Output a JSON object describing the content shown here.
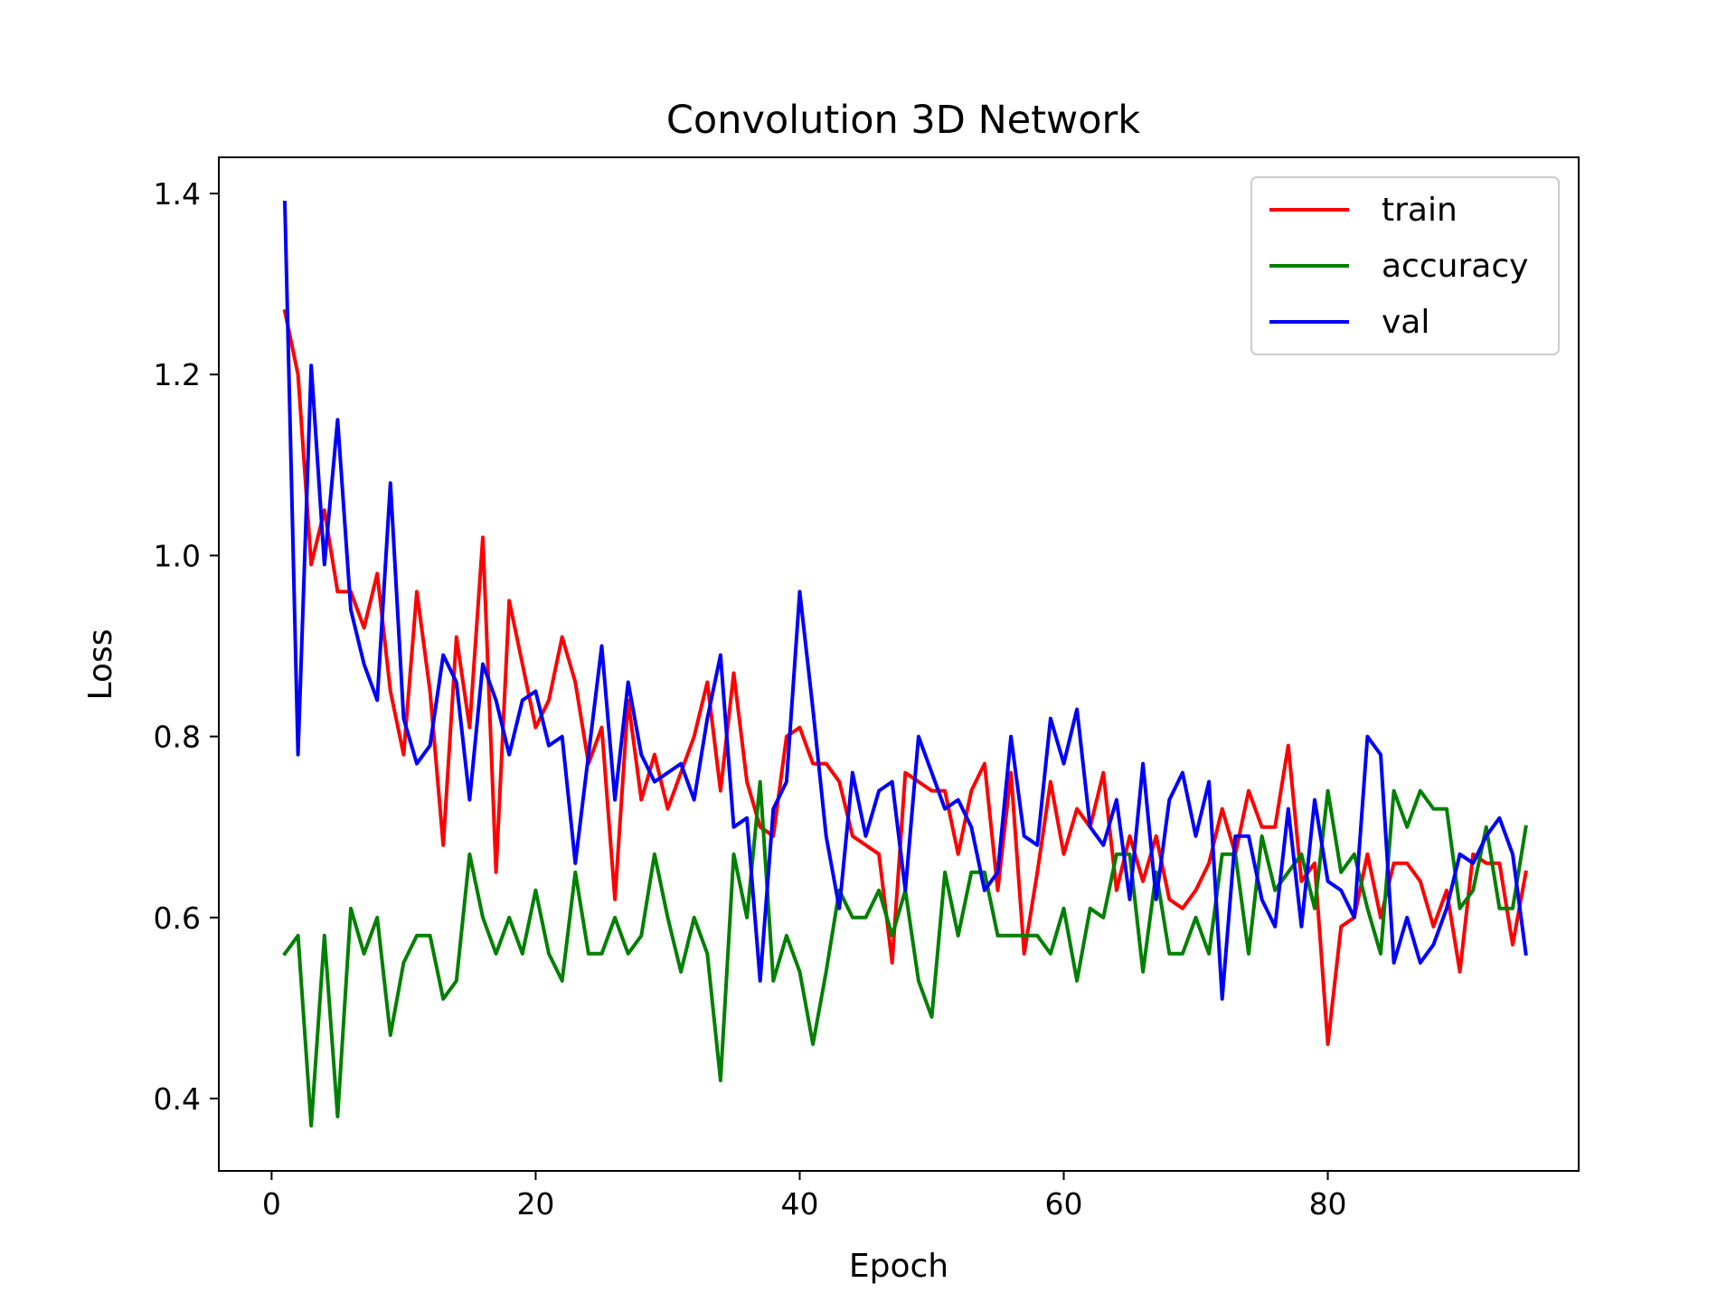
{
  "chart_data": {
    "type": "line",
    "title": "Convolution 3D Network",
    "xlabel": "Epoch",
    "ylabel": "Loss",
    "xlim": [
      -4,
      99
    ],
    "ylim": [
      0.32,
      1.44
    ],
    "xticks": [
      0,
      20,
      40,
      60,
      80
    ],
    "xtick_labels": [
      "0",
      "20",
      "40",
      "60",
      "80"
    ],
    "yticks": [
      0.4,
      0.6,
      0.8,
      1.0,
      1.2,
      1.4
    ],
    "ytick_labels": [
      "0.4",
      "0.6",
      "0.8",
      "1.0",
      "1.2",
      "1.4"
    ],
    "grid": false,
    "legend_position": "upper-right",
    "x": [
      1,
      2,
      3,
      4,
      5,
      6,
      7,
      8,
      9,
      10,
      11,
      12,
      13,
      14,
      15,
      16,
      17,
      18,
      19,
      20,
      21,
      22,
      23,
      24,
      25,
      26,
      27,
      28,
      29,
      30,
      31,
      32,
      33,
      34,
      35,
      36,
      37,
      38,
      39,
      40,
      41,
      42,
      43,
      44,
      45,
      46,
      47,
      48,
      49,
      50,
      51,
      52,
      53,
      54,
      55,
      56,
      57,
      58,
      59,
      60,
      61,
      62,
      63,
      64,
      65,
      66,
      67,
      68,
      69,
      70,
      71,
      72,
      73,
      74,
      75,
      76,
      77,
      78,
      79,
      80,
      81,
      82,
      83,
      84,
      85,
      86,
      87,
      88,
      89,
      90,
      91,
      92,
      93,
      94,
      95
    ],
    "series": [
      {
        "name": "train",
        "color": "#ff0000",
        "values": [
          1.27,
          1.2,
          0.99,
          1.05,
          0.96,
          0.96,
          0.92,
          0.98,
          0.85,
          0.78,
          0.96,
          0.85,
          0.68,
          0.91,
          0.81,
          1.02,
          0.65,
          0.95,
          0.88,
          0.81,
          0.84,
          0.91,
          0.86,
          0.77,
          0.81,
          0.62,
          0.84,
          0.73,
          0.78,
          0.72,
          0.76,
          0.8,
          0.86,
          0.74,
          0.87,
          0.75,
          0.7,
          0.69,
          0.8,
          0.81,
          0.77,
          0.77,
          0.75,
          0.69,
          0.68,
          0.67,
          0.55,
          0.76,
          0.75,
          0.74,
          0.74,
          0.67,
          0.74,
          0.77,
          0.63,
          0.76,
          0.56,
          0.65,
          0.75,
          0.67,
          0.72,
          0.7,
          0.76,
          0.63,
          0.69,
          0.64,
          0.69,
          0.62,
          0.61,
          0.63,
          0.66,
          0.72,
          0.67,
          0.74,
          0.7,
          0.7,
          0.79,
          0.64,
          0.66,
          0.46,
          0.59,
          0.6,
          0.67,
          0.6,
          0.66,
          0.66,
          0.64,
          0.59,
          0.63,
          0.54,
          0.67,
          0.66,
          0.66,
          0.57,
          0.65
        ]
      },
      {
        "name": "accuracy",
        "color": "#008000",
        "values": [
          0.56,
          0.58,
          0.37,
          0.58,
          0.38,
          0.61,
          0.56,
          0.6,
          0.47,
          0.55,
          0.58,
          0.58,
          0.51,
          0.53,
          0.67,
          0.6,
          0.56,
          0.6,
          0.56,
          0.63,
          0.56,
          0.53,
          0.65,
          0.56,
          0.56,
          0.6,
          0.56,
          0.58,
          0.67,
          0.6,
          0.54,
          0.6,
          0.56,
          0.42,
          0.67,
          0.6,
          0.75,
          0.53,
          0.58,
          0.54,
          0.46,
          0.54,
          0.63,
          0.6,
          0.6,
          0.63,
          0.58,
          0.63,
          0.53,
          0.49,
          0.65,
          0.58,
          0.65,
          0.65,
          0.58,
          0.58,
          0.58,
          0.58,
          0.56,
          0.61,
          0.53,
          0.61,
          0.6,
          0.67,
          0.67,
          0.54,
          0.65,
          0.56,
          0.56,
          0.6,
          0.56,
          0.67,
          0.67,
          0.56,
          0.69,
          0.63,
          0.65,
          0.67,
          0.61,
          0.74,
          0.65,
          0.67,
          0.61,
          0.56,
          0.74,
          0.7,
          0.74,
          0.72,
          0.72,
          0.61,
          0.63,
          0.7,
          0.61,
          0.61,
          0.7
        ]
      },
      {
        "name": "val",
        "color": "#0000ff",
        "values": [
          1.39,
          0.78,
          1.21,
          0.99,
          1.15,
          0.94,
          0.88,
          0.84,
          1.08,
          0.82,
          0.77,
          0.79,
          0.89,
          0.86,
          0.73,
          0.88,
          0.84,
          0.78,
          0.84,
          0.85,
          0.79,
          0.8,
          0.66,
          0.78,
          0.9,
          0.73,
          0.86,
          0.78,
          0.75,
          0.76,
          0.77,
          0.73,
          0.82,
          0.89,
          0.7,
          0.71,
          0.53,
          0.72,
          0.75,
          0.96,
          0.83,
          0.69,
          0.61,
          0.76,
          0.69,
          0.74,
          0.75,
          0.63,
          0.8,
          0.76,
          0.72,
          0.73,
          0.7,
          0.63,
          0.65,
          0.8,
          0.69,
          0.68,
          0.82,
          0.77,
          0.83,
          0.7,
          0.68,
          0.73,
          0.62,
          0.77,
          0.62,
          0.73,
          0.76,
          0.69,
          0.75,
          0.51,
          0.69,
          0.69,
          0.62,
          0.59,
          0.72,
          0.59,
          0.73,
          0.64,
          0.63,
          0.6,
          0.8,
          0.78,
          0.55,
          0.6,
          0.55,
          0.57,
          0.61,
          0.67,
          0.66,
          0.69,
          0.71,
          0.67,
          0.56
        ]
      }
    ]
  }
}
